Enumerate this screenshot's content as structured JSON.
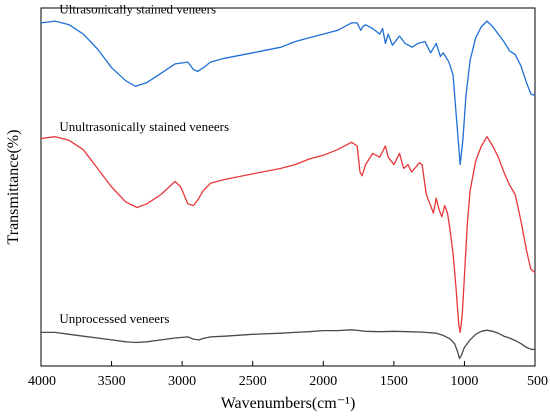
{
  "chart_data": {
    "type": "line",
    "xlabel": "Wavenumbers(cm⁻¹)",
    "ylabel": "Transmittance(%)",
    "xlim": [
      4000,
      500
    ],
    "x_reversed": true,
    "y_ticks_shown": false,
    "grid": false,
    "x_ticks": [
      "4000",
      "3500",
      "3000",
      "2500",
      "2000",
      "1500",
      "1000",
      "500"
    ],
    "series": [
      {
        "name": "Ultrasonically stained veneers",
        "color": "#1f6fd6",
        "label_at": [
          3870,
          88.5
        ],
        "points": [
          [
            4000,
            86
          ],
          [
            3900,
            86.5
          ],
          [
            3800,
            85.5
          ],
          [
            3700,
            83
          ],
          [
            3600,
            79
          ],
          [
            3500,
            74
          ],
          [
            3400,
            70.5
          ],
          [
            3330,
            69
          ],
          [
            3250,
            70
          ],
          [
            3150,
            72.5
          ],
          [
            3050,
            75
          ],
          [
            2960,
            75.5
          ],
          [
            2920,
            73.5
          ],
          [
            2890,
            73
          ],
          [
            2850,
            74
          ],
          [
            2800,
            75.5
          ],
          [
            2700,
            76.5
          ],
          [
            2500,
            78
          ],
          [
            2300,
            79.5
          ],
          [
            2200,
            81
          ],
          [
            2100,
            82
          ],
          [
            2000,
            83
          ],
          [
            1900,
            84
          ],
          [
            1800,
            86
          ],
          [
            1760,
            86
          ],
          [
            1735,
            84
          ],
          [
            1720,
            85
          ],
          [
            1700,
            85.5
          ],
          [
            1650,
            84.5
          ],
          [
            1600,
            83
          ],
          [
            1580,
            84.5
          ],
          [
            1560,
            80.5
          ],
          [
            1540,
            83
          ],
          [
            1510,
            80
          ],
          [
            1460,
            82.5
          ],
          [
            1420,
            80.5
          ],
          [
            1370,
            79.5
          ],
          [
            1330,
            80.5
          ],
          [
            1280,
            81
          ],
          [
            1240,
            78
          ],
          [
            1200,
            80.5
          ],
          [
            1170,
            77
          ],
          [
            1150,
            78
          ],
          [
            1110,
            75.5
          ],
          [
            1080,
            72
          ],
          [
            1060,
            62
          ],
          [
            1045,
            55
          ],
          [
            1030,
            48
          ],
          [
            1010,
            55
          ],
          [
            990,
            66
          ],
          [
            960,
            76
          ],
          [
            920,
            82
          ],
          [
            880,
            85
          ],
          [
            840,
            86.5
          ],
          [
            800,
            85
          ],
          [
            760,
            83
          ],
          [
            720,
            81
          ],
          [
            680,
            78.5
          ],
          [
            640,
            77.5
          ],
          [
            600,
            74.5
          ],
          [
            560,
            70
          ],
          [
            530,
            67
          ],
          [
            500,
            66.5
          ]
        ]
      },
      {
        "name": "Unultrasonically stained veneers",
        "color": "#e8373a",
        "label_at": [
          3870,
          57
        ],
        "points": [
          [
            4000,
            55
          ],
          [
            3900,
            55.5
          ],
          [
            3800,
            54.5
          ],
          [
            3700,
            52
          ],
          [
            3600,
            47
          ],
          [
            3500,
            42
          ],
          [
            3400,
            38
          ],
          [
            3320,
            36.5
          ],
          [
            3250,
            37.5
          ],
          [
            3150,
            40
          ],
          [
            3050,
            43.5
          ],
          [
            3010,
            42
          ],
          [
            2960,
            37.5
          ],
          [
            2920,
            37
          ],
          [
            2890,
            38.5
          ],
          [
            2850,
            41
          ],
          [
            2800,
            43
          ],
          [
            2700,
            44
          ],
          [
            2500,
            45.5
          ],
          [
            2300,
            47
          ],
          [
            2200,
            48
          ],
          [
            2100,
            49.5
          ],
          [
            2000,
            50.5
          ],
          [
            1900,
            52
          ],
          [
            1800,
            54
          ],
          [
            1760,
            53
          ],
          [
            1740,
            46
          ],
          [
            1725,
            45
          ],
          [
            1700,
            48
          ],
          [
            1650,
            51
          ],
          [
            1600,
            50
          ],
          [
            1560,
            53
          ],
          [
            1540,
            50
          ],
          [
            1500,
            48
          ],
          [
            1460,
            51
          ],
          [
            1430,
            47
          ],
          [
            1400,
            48
          ],
          [
            1375,
            46
          ],
          [
            1340,
            47.5
          ],
          [
            1320,
            48.5
          ],
          [
            1300,
            48
          ],
          [
            1270,
            40
          ],
          [
            1240,
            37
          ],
          [
            1220,
            35
          ],
          [
            1200,
            39
          ],
          [
            1180,
            36
          ],
          [
            1160,
            34
          ],
          [
            1140,
            37
          ],
          [
            1120,
            35
          ],
          [
            1100,
            30
          ],
          [
            1080,
            24
          ],
          [
            1060,
            15
          ],
          [
            1040,
            5
          ],
          [
            1030,
            3
          ],
          [
            1015,
            8
          ],
          [
            1000,
            18
          ],
          [
            980,
            32
          ],
          [
            960,
            41
          ],
          [
            920,
            49
          ],
          [
            880,
            53
          ],
          [
            840,
            55.5
          ],
          [
            800,
            53
          ],
          [
            760,
            50
          ],
          [
            720,
            46
          ],
          [
            680,
            42.5
          ],
          [
            640,
            40
          ],
          [
            600,
            33
          ],
          [
            560,
            25
          ],
          [
            530,
            20
          ],
          [
            500,
            19
          ]
        ]
      },
      {
        "name": "Unprocessed veneers",
        "color": "#4a4a4a",
        "label_at": [
          3870,
          5.5
        ],
        "points": [
          [
            4000,
            3
          ],
          [
            3900,
            3
          ],
          [
            3800,
            2.5
          ],
          [
            3700,
            2
          ],
          [
            3600,
            1.5
          ],
          [
            3500,
            1
          ],
          [
            3400,
            0.5
          ],
          [
            3330,
            0.3
          ],
          [
            3250,
            0.5
          ],
          [
            3150,
            1
          ],
          [
            3050,
            1.5
          ],
          [
            2960,
            1.8
          ],
          [
            2920,
            1.2
          ],
          [
            2880,
            1
          ],
          [
            2850,
            1.4
          ],
          [
            2800,
            1.8
          ],
          [
            2700,
            2
          ],
          [
            2500,
            2.5
          ],
          [
            2300,
            2.8
          ],
          [
            2200,
            3
          ],
          [
            2100,
            3.2
          ],
          [
            2000,
            3.5
          ],
          [
            1900,
            3.5
          ],
          [
            1800,
            3.7
          ],
          [
            1740,
            3.5
          ],
          [
            1700,
            3.3
          ],
          [
            1600,
            3.2
          ],
          [
            1500,
            3.3
          ],
          [
            1400,
            3.2
          ],
          [
            1300,
            3.1
          ],
          [
            1200,
            2.8
          ],
          [
            1150,
            2.2
          ],
          [
            1100,
            1.2
          ],
          [
            1070,
            0
          ],
          [
            1050,
            -2
          ],
          [
            1035,
            -4
          ],
          [
            1020,
            -3
          ],
          [
            1000,
            -1
          ],
          [
            960,
            1
          ],
          [
            920,
            2.5
          ],
          [
            880,
            3.3
          ],
          [
            840,
            3.6
          ],
          [
            800,
            3.3
          ],
          [
            760,
            2.8
          ],
          [
            720,
            2
          ],
          [
            680,
            1.5
          ],
          [
            640,
            0.8
          ],
          [
            600,
            0
          ],
          [
            560,
            -1
          ],
          [
            530,
            -1.5
          ],
          [
            500,
            -1.6
          ]
        ]
      }
    ]
  }
}
